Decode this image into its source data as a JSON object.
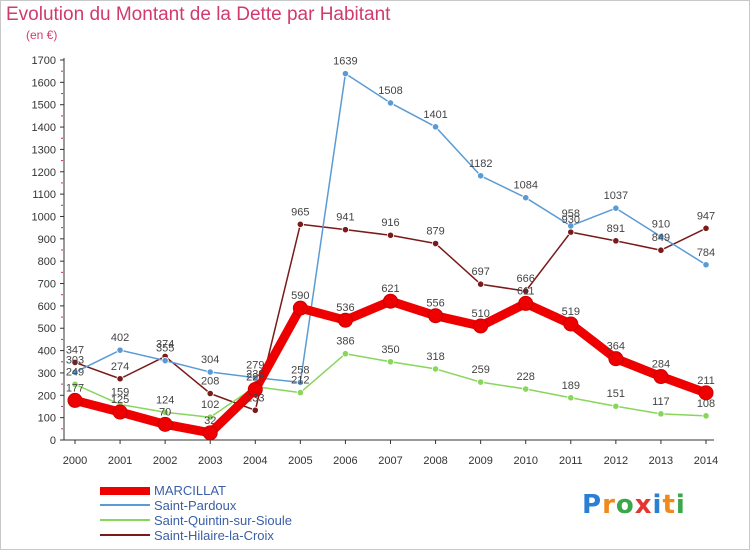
{
  "header": {
    "title": "Evolution du Montant de la Dette par Habitant",
    "subtitle": "(en €)"
  },
  "brand": {
    "text": "Proxiti"
  },
  "chart_data": {
    "type": "line",
    "title": "Evolution du Montant de la Dette par Habitant",
    "ylabel": "(en €)",
    "xlabel": "",
    "ylim": [
      0,
      1700
    ],
    "yticks": [
      0,
      100,
      200,
      300,
      400,
      500,
      600,
      700,
      800,
      900,
      1000,
      1100,
      1200,
      1300,
      1400,
      1500,
      1600,
      1700
    ],
    "x": [
      "2000",
      "2001",
      "2002",
      "2003",
      "2004",
      "2005",
      "2006",
      "2007",
      "2008",
      "2009",
      "2010",
      "2011",
      "2012",
      "2013",
      "2014"
    ],
    "grid": false,
    "legend_placement": "bottom-left",
    "series": [
      {
        "name": "Saint-Hilaire-la-Croix",
        "color": "#7a1a1a",
        "values": [
          347,
          274,
          374,
          208,
          133,
          965,
          941,
          916,
          879,
          697,
          666,
          930,
          891,
          849,
          947
        ],
        "labels": [
          "347",
          "274",
          "374",
          "208",
          "133",
          "965",
          "941",
          "916",
          "879",
          "697",
          "666",
          "930",
          "891",
          "849",
          "947"
        ]
      },
      {
        "name": "Saint-Pardoux",
        "color": "#5b9bd5",
        "values": [
          303,
          402,
          355,
          304,
          279,
          258,
          1639,
          1508,
          1401,
          1182,
          1084,
          958,
          1037,
          910,
          784
        ],
        "labels": [
          "303",
          "402",
          "355",
          "304",
          "279",
          "258",
          "1639",
          "1508",
          "1401",
          "1182",
          "1084",
          "958",
          "1037",
          "910",
          "784"
        ]
      },
      {
        "name": "Saint-Quintin-sur-Sioule",
        "color": "#88d65a",
        "values": [
          249,
          159,
          124,
          102,
          239,
          212,
          386,
          350,
          318,
          259,
          228,
          189,
          151,
          117,
          108
        ],
        "labels": [
          "249",
          "159",
          "124",
          "102",
          "239",
          "212",
          "386",
          "350",
          "318",
          "259",
          "228",
          "189",
          "151",
          "117",
          "108"
        ]
      },
      {
        "name": "MARCILLAT",
        "color": "#ee0000",
        "values": [
          177,
          125,
          70,
          32,
          226,
          590,
          536,
          621,
          556,
          510,
          611,
          519,
          364,
          284,
          211
        ],
        "labels": [
          "177",
          "125",
          "70",
          "32",
          "226",
          "590",
          "536",
          "621",
          "556",
          "510",
          "611",
          "519",
          "364",
          "284",
          "211"
        ]
      }
    ],
    "legend": [
      "MARCILLAT",
      "Saint-Pardoux",
      "Saint-Quintin-sur-Sioule",
      "Saint-Hilaire-la-Croix"
    ]
  }
}
